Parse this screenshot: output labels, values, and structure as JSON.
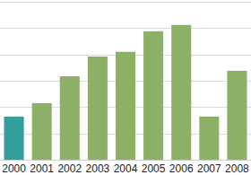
{
  "chart_data": {
    "type": "bar",
    "categories": [
      "2000",
      "2001",
      "2002",
      "2003",
      "2004",
      "2005",
      "2006",
      "2007",
      "2008"
    ],
    "values": [
      1.64,
      2.15,
      3.17,
      3.92,
      4.1,
      4.88,
      5.12,
      1.64,
      3.38
    ],
    "colors": [
      "#339e9a",
      "#8cb066",
      "#8cb066",
      "#8cb066",
      "#8cb066",
      "#8cb066",
      "#8cb066",
      "#8cb066",
      "#8cb066"
    ],
    "ylim": [
      0,
      6
    ],
    "yticks": [
      0,
      1,
      2,
      3,
      4,
      5,
      6
    ],
    "grid": true,
    "tick_labels": "x"
  }
}
